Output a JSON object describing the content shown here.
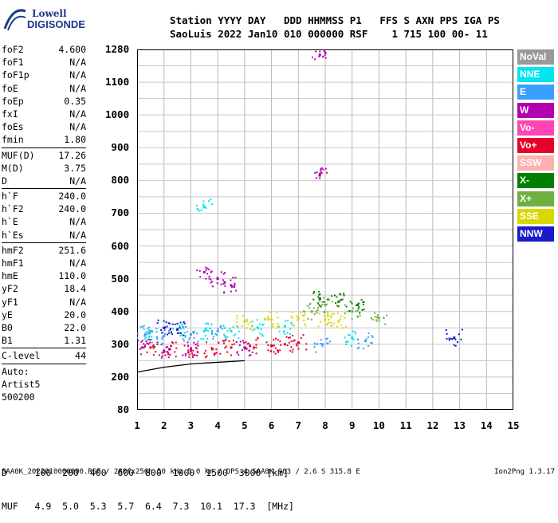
{
  "logo": {
    "line1": "Lowell",
    "line2": "DIGISONDE"
  },
  "header": {
    "row1": "Station YYYY DAY   DDD HHMMSS P1   FFS S AXN PPS IGA PS",
    "row2": "SaoLuis 2022 Jan10 010 000000 RSF    1 715 100 00- 11"
  },
  "params": [
    {
      "k": "foF2",
      "v": "4.600"
    },
    {
      "k": "foF1",
      "v": "N/A"
    },
    {
      "k": "foF1p",
      "v": "N/A"
    },
    {
      "k": "foE",
      "v": "N/A"
    },
    {
      "k": "foEp",
      "v": "0.35"
    },
    {
      "k": "fxI",
      "v": "N/A"
    },
    {
      "k": "foEs",
      "v": "N/A"
    },
    {
      "k": "fmin",
      "v": "1.80"
    },
    {
      "sep": true
    },
    {
      "k": "MUF(D)",
      "v": "17.26"
    },
    {
      "k": "M(D)",
      "v": "3.75"
    },
    {
      "k": "D",
      "v": "N/A"
    },
    {
      "sep": true
    },
    {
      "k": "h`F",
      "v": "240.0"
    },
    {
      "k": "h`F2",
      "v": "240.0"
    },
    {
      "k": "h`E",
      "v": "N/A"
    },
    {
      "k": "h`Es",
      "v": "N/A"
    },
    {
      "sep": true
    },
    {
      "k": "hmF2",
      "v": "251.6"
    },
    {
      "k": "hmF1",
      "v": "N/A"
    },
    {
      "k": "hmE",
      "v": "110.0"
    },
    {
      "k": "yF2",
      "v": "18.4"
    },
    {
      "k": "yF1",
      "v": "N/A"
    },
    {
      "k": "yE",
      "v": "20.0"
    },
    {
      "k": "B0",
      "v": "22.0"
    },
    {
      "k": "B1",
      "v": "1.31"
    },
    {
      "sep": true
    },
    {
      "k": "C-level",
      "v": "44"
    },
    {
      "sep": true
    },
    {
      "k": "Auto:",
      "v": ""
    },
    {
      "k": "Artist5",
      "v": ""
    },
    {
      "k": "500200",
      "v": ""
    }
  ],
  "y_ticks": [
    "1280",
    "1100",
    "1000",
    "900",
    "800",
    "700",
    "600",
    "500",
    "400",
    "300",
    "200",
    "80"
  ],
  "x_ticks": [
    "1",
    "2",
    "3",
    "4",
    "5",
    "6",
    "7",
    "8",
    "9",
    "10",
    "11",
    "12",
    "13",
    "14",
    "15"
  ],
  "legend": [
    {
      "label": "NoVal",
      "color": "#999999"
    },
    {
      "label": "NNE",
      "color": "#00e5ee"
    },
    {
      "label": "E",
      "color": "#3aa0ff"
    },
    {
      "label": "W",
      "color": "#b000b0"
    },
    {
      "label": "Vo-",
      "color": "#ff44b4"
    },
    {
      "label": "Vo+",
      "color": "#e8002a"
    },
    {
      "label": "SSW",
      "color": "#ffb0b0"
    },
    {
      "label": "X-",
      "color": "#008000"
    },
    {
      "label": "X+",
      "color": "#70b040"
    },
    {
      "label": "SSE",
      "color": "#d8d800"
    },
    {
      "label": "NNW",
      "color": "#1a1acc"
    }
  ],
  "bottom_table": {
    "row1": "D     100  200  400  600  800  1000  1500  3000 [km]",
    "row2": "MUF   4.9  5.0  5.3  5.7  6.4  7.3  10.1  17.3  [MHz]"
  },
  "footer": {
    "left": "SAA0K_2022010000000.RSF / 280fx256h 50 kHz 5.0 km / DPS-4 SAA0K 903 / 2.6 S 315.8 E",
    "right": "Ion2Png 1.3.17"
  },
  "chart_data": {
    "type": "scatter",
    "title": "",
    "xlabel": "",
    "ylabel": "",
    "xlim": [
      1,
      15
    ],
    "y_ticks_km": [
      80,
      200,
      300,
      400,
      500,
      600,
      700,
      800,
      900,
      1000,
      1100,
      1280
    ],
    "grid": true,
    "series": [
      {
        "name": "Vo+",
        "color": "#e8002a",
        "points": [
          [
            1.5,
            290
          ],
          [
            2.2,
            285
          ],
          [
            3.0,
            280
          ],
          [
            3.8,
            285
          ],
          [
            4.5,
            290
          ],
          [
            5.2,
            295
          ],
          [
            6.0,
            295
          ],
          [
            6.5,
            300
          ],
          [
            7.0,
            305
          ]
        ]
      },
      {
        "name": "W",
        "color": "#b000b0",
        "points": [
          [
            1.2,
            290
          ],
          [
            2.0,
            280
          ],
          [
            3.0,
            285
          ],
          [
            3.5,
            520
          ],
          [
            4.0,
            500
          ],
          [
            4.5,
            480
          ],
          [
            5.0,
            290
          ],
          [
            7.8,
            1250
          ],
          [
            7.8,
            820
          ]
        ]
      },
      {
        "name": "NNE",
        "color": "#00e5ee",
        "points": [
          [
            1.5,
            340
          ],
          [
            2.5,
            345
          ],
          [
            3.5,
            340
          ],
          [
            3.5,
            720
          ],
          [
            4.5,
            340
          ],
          [
            5.5,
            350
          ],
          [
            6.5,
            355
          ],
          [
            9.0,
            320
          ]
        ]
      },
      {
        "name": "E",
        "color": "#3aa0ff",
        "points": [
          [
            1.3,
            330
          ],
          [
            2.0,
            325
          ],
          [
            3.0,
            330
          ],
          [
            4.0,
            340
          ],
          [
            7.9,
            300
          ],
          [
            9.5,
            310
          ]
        ]
      },
      {
        "name": "SSE",
        "color": "#d8d800",
        "points": [
          [
            5.0,
            370
          ],
          [
            6.0,
            375
          ],
          [
            7.0,
            380
          ],
          [
            8.0,
            375
          ],
          [
            8.5,
            370
          ]
        ]
      },
      {
        "name": "X+",
        "color": "#70b040",
        "points": [
          [
            7.5,
            400
          ],
          [
            8.0,
            420
          ],
          [
            9.0,
            400
          ],
          [
            10.0,
            380
          ]
        ]
      },
      {
        "name": "X-",
        "color": "#008000",
        "points": [
          [
            7.8,
            440
          ],
          [
            8.5,
            430
          ],
          [
            9.2,
            420
          ]
        ]
      },
      {
        "name": "NNW",
        "color": "#1a1acc",
        "points": [
          [
            2.0,
            350
          ],
          [
            2.5,
            345
          ],
          [
            12.8,
            320
          ]
        ]
      }
    ],
    "profile_line": {
      "points": [
        [
          1.0,
          215
        ],
        [
          2.0,
          230
        ],
        [
          3.0,
          240
        ],
        [
          4.0,
          245
        ],
        [
          5.0,
          250
        ]
      ]
    }
  }
}
